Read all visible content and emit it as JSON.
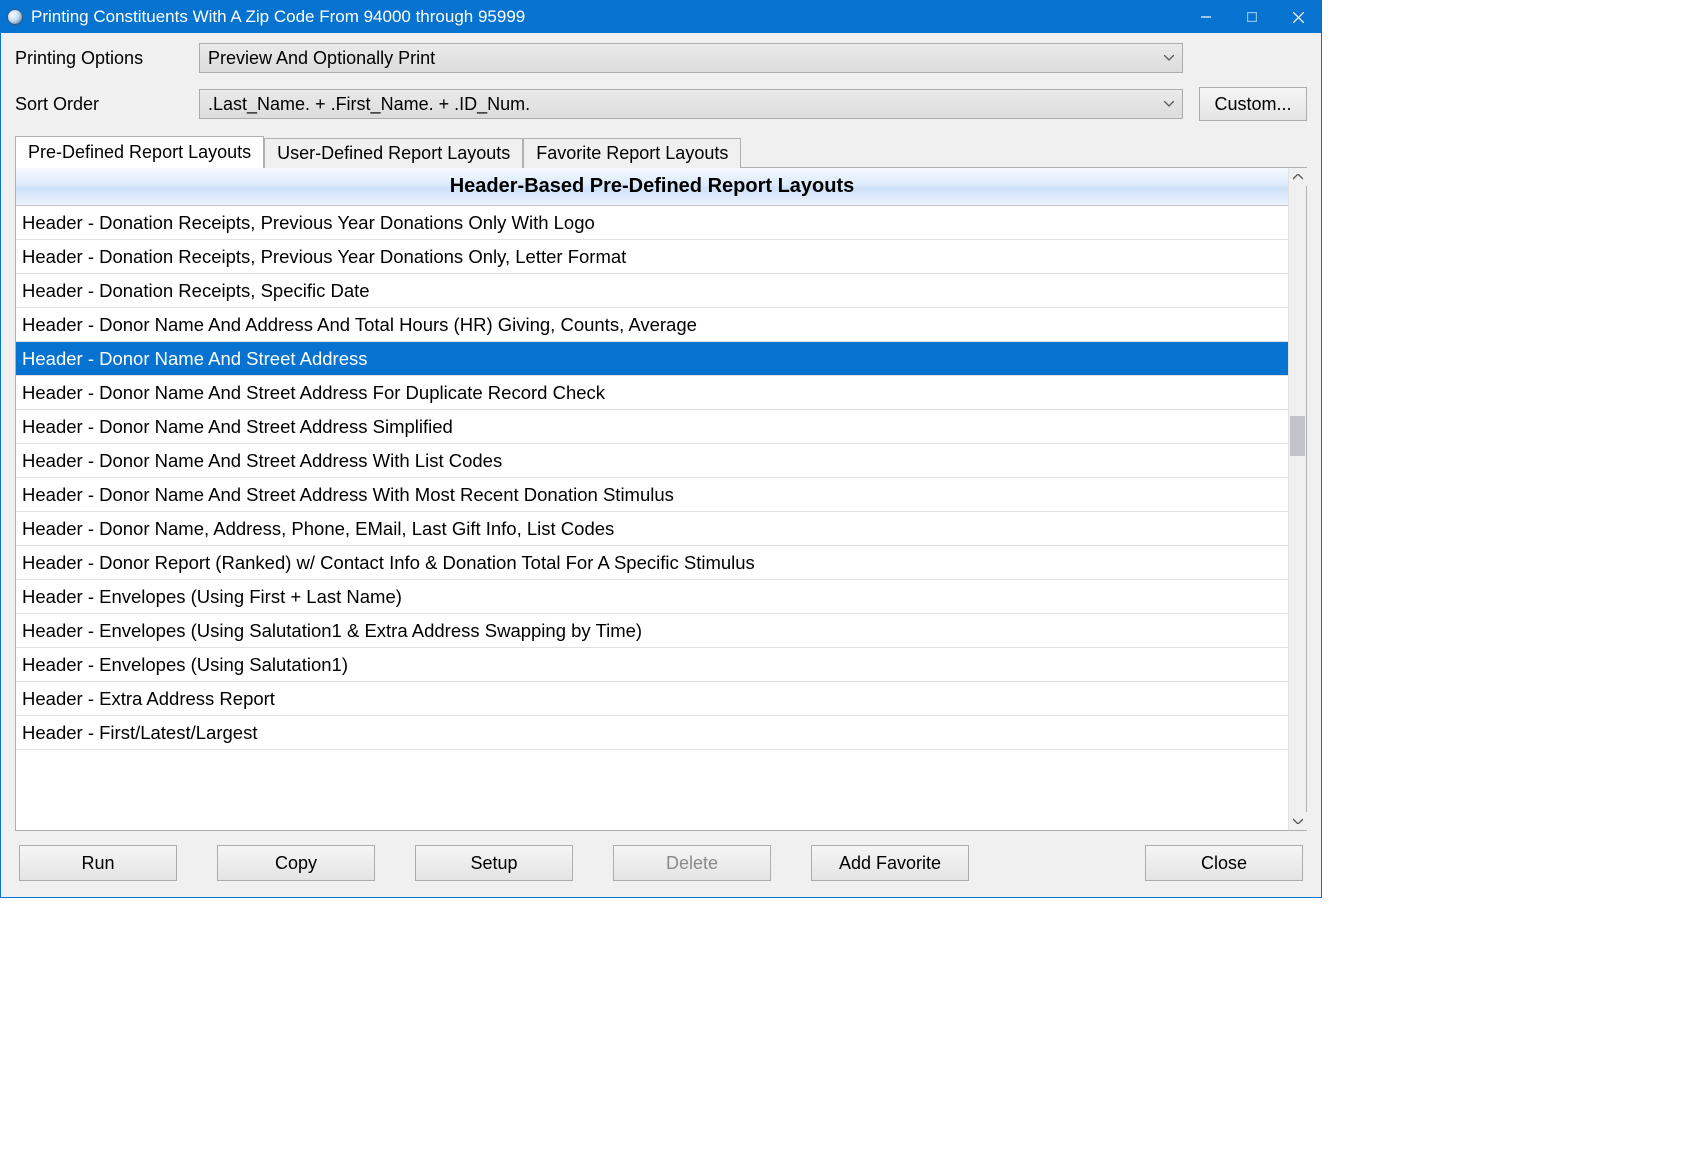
{
  "window": {
    "title": "Printing Constituents With A Zip Code From 94000 through 95999"
  },
  "form": {
    "printing_options_label": "Printing Options",
    "printing_options_value": "Preview And Optionally Print",
    "sort_order_label": "Sort Order",
    "sort_order_value": ".Last_Name. + .First_Name. + .ID_Num.",
    "custom_button": "Custom..."
  },
  "tabs": {
    "predefined": "Pre-Defined Report Layouts",
    "userdefined": "User-Defined Report Layouts",
    "favorite": "Favorite Report Layouts"
  },
  "list": {
    "header": "Header-Based Pre-Defined Report Layouts",
    "rows": [
      {
        "label": "Header - Donation Receipts, Previous Year Donations Only With Logo",
        "selected": false
      },
      {
        "label": "Header - Donation Receipts, Previous Year Donations Only, Letter Format",
        "selected": false
      },
      {
        "label": "Header - Donation Receipts, Specific Date",
        "selected": false
      },
      {
        "label": "Header - Donor Name And Address And Total Hours (HR) Giving, Counts, Average",
        "selected": false
      },
      {
        "label": "Header - Donor Name And Street Address",
        "selected": true
      },
      {
        "label": "Header - Donor Name And Street Address For Duplicate Record Check",
        "selected": false
      },
      {
        "label": "Header - Donor Name And Street Address Simplified",
        "selected": false
      },
      {
        "label": "Header - Donor Name And Street Address With List Codes",
        "selected": false
      },
      {
        "label": "Header - Donor Name And Street Address With Most Recent Donation Stimulus",
        "selected": false
      },
      {
        "label": "Header - Donor Name, Address, Phone, EMail, Last Gift Info, List Codes",
        "selected": false
      },
      {
        "label": "Header - Donor Report (Ranked) w/ Contact Info & Donation Total For A Specific Stimulus",
        "selected": false
      },
      {
        "label": "Header - Envelopes (Using First + Last Name)",
        "selected": false
      },
      {
        "label": "Header - Envelopes (Using Salutation1 & Extra Address Swapping by Time)",
        "selected": false
      },
      {
        "label": "Header - Envelopes (Using Salutation1)",
        "selected": false
      },
      {
        "label": "Header - Extra Address Report",
        "selected": false
      },
      {
        "label": "Header - First/Latest/Largest",
        "selected": false
      }
    ]
  },
  "buttons": {
    "run": "Run",
    "copy": "Copy",
    "setup": "Setup",
    "delete": "Delete",
    "add_favorite": "Add Favorite",
    "close": "Close"
  },
  "colors": {
    "accent": "#0673d1",
    "window_bg": "#f0f0f0",
    "selected_row_bg": "#0673d1",
    "selected_row_fg": "#ffffff"
  }
}
